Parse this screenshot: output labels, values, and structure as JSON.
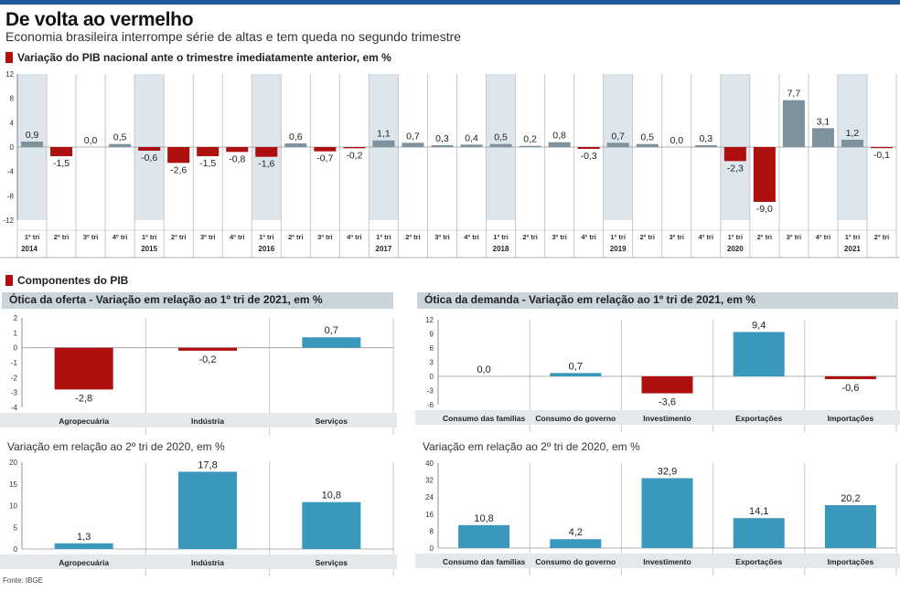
{
  "header": {
    "title": "De volta ao vermelho",
    "subtitle": "Economia brasileira interrompe série de altas e tem queda no segundo trimestre"
  },
  "section_gdp": {
    "label": "Variação do PIB nacional ante o trimestre imediatamente anterior, em %"
  },
  "section_components": {
    "label": "Componentes do PIB"
  },
  "footer": {
    "source": "Fonte: IBGE"
  },
  "colors": {
    "positive_main": "#7d929c",
    "negative": "#ae1010",
    "positive_components": "#3b98bd",
    "shade": "#dce6ec",
    "band": "#c9d5db",
    "accent_bar": "#1f5aa0"
  },
  "chart_data": [
    {
      "id": "gdp_quarterly",
      "type": "bar",
      "ylim": [
        -12,
        12
      ],
      "yticks": [
        12,
        8,
        4,
        0,
        -4,
        -8,
        -12
      ],
      "categories": [
        "1º tri",
        "2º tri",
        "3º tri",
        "4º tri",
        "1º tri",
        "2º tri",
        "3º tri",
        "4º tri",
        "1º tri",
        "2º tri",
        "3º tri",
        "4º tri",
        "1º tri",
        "2º tri",
        "3º tri",
        "4º tri",
        "1º tri",
        "2º tri",
        "3º tri",
        "4º tri",
        "1º tri",
        "2º tri",
        "3º tri",
        "4º tri",
        "1º tri",
        "2º tri",
        "3º tri",
        "4º tri",
        "1º tri",
        "2º tri"
      ],
      "values": [
        0.9,
        -1.5,
        0.0,
        0.5,
        -0.6,
        -2.6,
        -1.5,
        -0.8,
        -1.6,
        0.6,
        -0.7,
        -0.2,
        1.1,
        0.7,
        0.3,
        0.4,
        0.5,
        0.2,
        0.8,
        -0.3,
        0.7,
        0.5,
        0.0,
        0.3,
        -2.3,
        -9.0,
        7.7,
        3.1,
        1.2,
        -0.1
      ],
      "labels": [
        "0,9",
        "-1,5",
        "0,0",
        "0,5",
        "-0,6",
        "-2,6",
        "-1,5",
        "-0,8",
        "-1,6",
        "0,6",
        "-0,7",
        "-0,2",
        "1,1",
        "0,7",
        "0,3",
        "0,4",
        "0,5",
        "0,2",
        "0,8",
        "-0,3",
        "0,7",
        "0,5",
        "0,0",
        "0,3",
        "-2,3",
        "-9,0",
        "7,7",
        "3,1",
        "1,2",
        "-0,1"
      ],
      "years": [
        "2014",
        "2015",
        "2016",
        "2017",
        "2018",
        "2019",
        "2020",
        "2021"
      ]
    },
    {
      "id": "supply_q1",
      "type": "bar",
      "title": "Ótica da oferta - Variação em relação ao 1º tri de 2021, em %",
      "ylim": [
        -4,
        2
      ],
      "yticks": [
        2,
        1,
        0,
        -1,
        -2,
        -3,
        -4
      ],
      "categories": [
        "Agropecuária",
        "Indústria",
        "Serviços"
      ],
      "values": [
        -2.8,
        -0.2,
        0.7
      ],
      "labels": [
        "-2,8",
        "-0,2",
        "0,7"
      ]
    },
    {
      "id": "demand_q1",
      "type": "bar",
      "title": "Ótica da demanda - Variação em relação ao 1º tri de 2021, em %",
      "ylim": [
        -6,
        12
      ],
      "yticks": [
        12,
        9,
        6,
        3,
        0,
        -3,
        -6
      ],
      "categories": [
        "Consumo das famílias",
        "Consumo do governo",
        "Investimento",
        "Exportações",
        "Importações"
      ],
      "values": [
        0.0,
        0.7,
        -3.6,
        9.4,
        -0.6
      ],
      "labels": [
        "0,0",
        "0,7",
        "-3,6",
        "9,4",
        "-0,6"
      ]
    },
    {
      "id": "supply_2020",
      "type": "bar",
      "title": "Variação em relação ao 2º tri de 2020, em %",
      "ylim": [
        0,
        20
      ],
      "yticks": [
        20,
        15,
        10,
        5,
        0
      ],
      "categories": [
        "Agropecuária",
        "Indústria",
        "Serviços"
      ],
      "values": [
        1.3,
        17.8,
        10.8
      ],
      "labels": [
        "1,3",
        "17,8",
        "10,8"
      ]
    },
    {
      "id": "demand_2020",
      "type": "bar",
      "title": "Variação em relação ao 2º tri de 2020, em %",
      "ylim": [
        0,
        40
      ],
      "yticks": [
        40,
        32,
        24,
        16,
        8,
        0
      ],
      "categories": [
        "Consumo das famílias",
        "Consumo do governo",
        "Investimento",
        "Exportações",
        "Importações"
      ],
      "values": [
        10.8,
        4.2,
        32.9,
        14.1,
        20.2
      ],
      "labels": [
        "10,8",
        "4,2",
        "32,9",
        "14,1",
        "20,2"
      ]
    }
  ]
}
